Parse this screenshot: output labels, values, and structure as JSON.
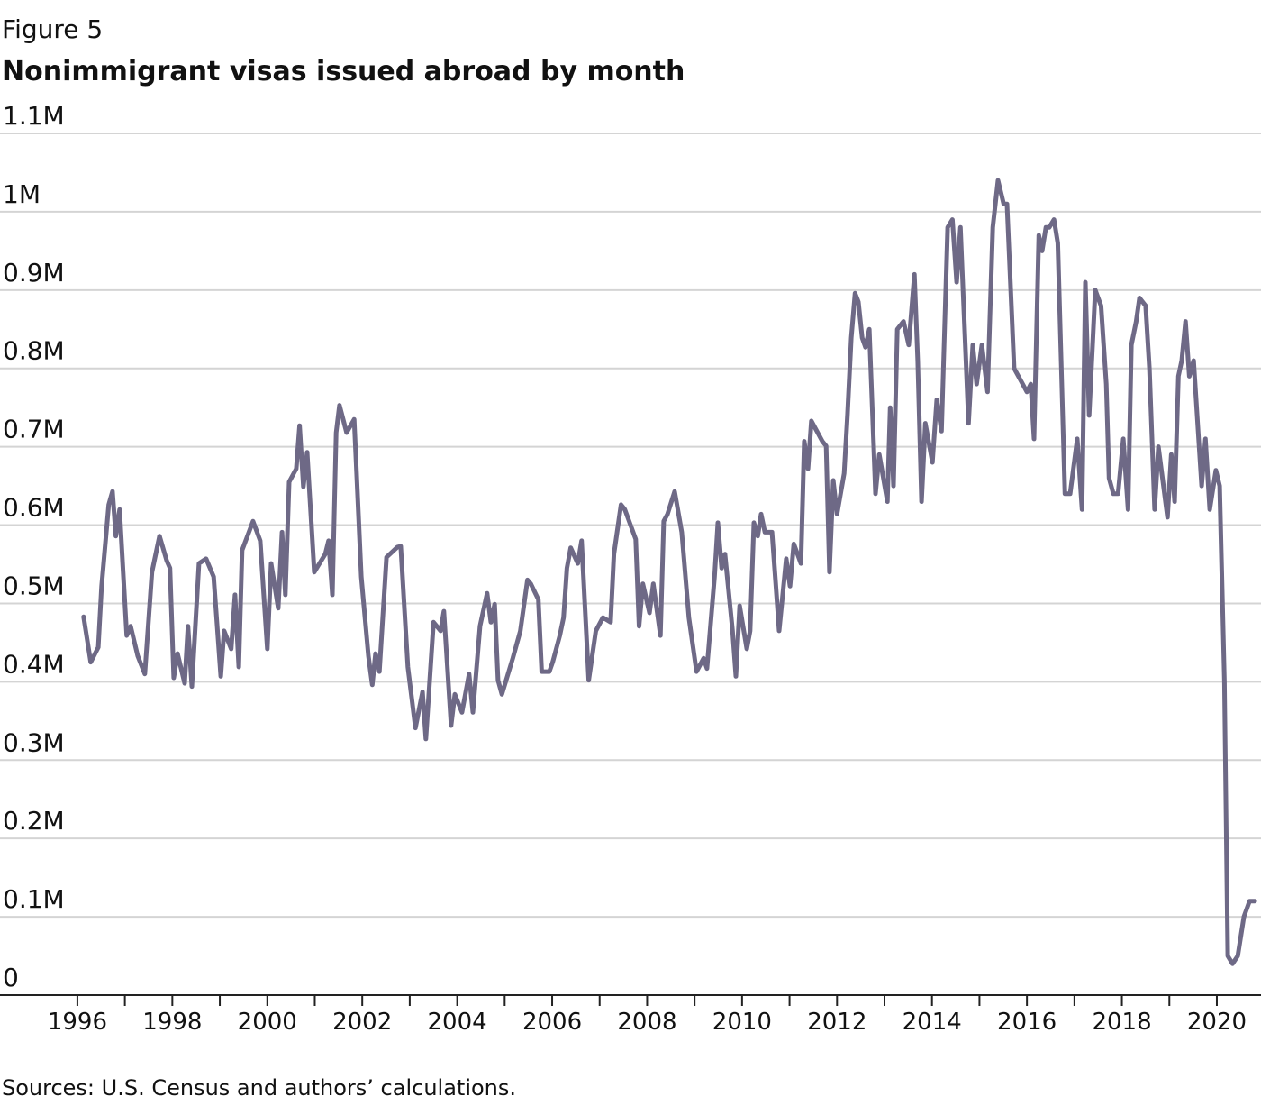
{
  "chart_data": {
    "type": "line",
    "figure_label": "Figure 5",
    "title": "Nonimmigrant visas issued abroad by month",
    "source": "Sources: U.S. Census and authors’ calculations.",
    "color": "#6e6986",
    "grid": true,
    "xlim": [
      1994.37,
      2020.93
    ],
    "ylim": [
      0,
      1100000
    ],
    "xticks": [
      1996,
      1998,
      2000,
      2002,
      2004,
      2006,
      2008,
      2010,
      2012,
      2014,
      2016,
      2018,
      2020
    ],
    "x_minor_ticks": [
      1997,
      1999,
      2001,
      2003,
      2005,
      2007,
      2009,
      2011,
      2013,
      2015,
      2017,
      2019
    ],
    "yticks": [
      0,
      {
        "value": 100000,
        "label": "0.1M"
      },
      {
        "value": 200000,
        "label": "0.2M"
      },
      {
        "value": 300000,
        "label": "0.3M"
      },
      {
        "value": 400000,
        "label": "0.4M"
      },
      {
        "value": 500000,
        "label": "0.5M"
      },
      {
        "value": 600000,
        "label": "0.6M"
      },
      {
        "value": 700000,
        "label": "0.7M"
      },
      {
        "value": 800000,
        "label": "0.8M"
      },
      {
        "value": 900000,
        "label": "0.9M"
      },
      {
        "value": 1000000,
        "label": "1M"
      },
      {
        "value": 1100000,
        "label": "1.1M"
      }
    ],
    "x": [
      1996.13,
      1996.28,
      1996.44,
      1996.51,
      1996.66,
      1996.74,
      1996.81,
      1996.89,
      1997.04,
      1997.12,
      1997.27,
      1997.42,
      1997.57,
      1997.73,
      1997.88,
      1997.95,
      1998.03,
      1998.11,
      1998.26,
      1998.33,
      1998.41,
      1998.56,
      1998.71,
      1998.87,
      1999.02,
      1999.09,
      1999.24,
      1999.32,
      1999.4,
      1999.47,
      1999.7,
      1999.85,
      2000.0,
      2000.08,
      2000.23,
      2000.31,
      2000.38,
      2000.46,
      2000.61,
      2000.68,
      2000.76,
      2000.84,
      2000.99,
      2001.22,
      2001.29,
      2001.37,
      2001.45,
      2001.52,
      2001.67,
      2001.83,
      2001.98,
      2002.13,
      2002.21,
      2002.28,
      2002.36,
      2002.51,
      2002.74,
      2002.81,
      2002.96,
      2003.12,
      2003.27,
      2003.34,
      2003.5,
      2003.65,
      2003.72,
      2003.87,
      2003.95,
      2004.1,
      2004.25,
      2004.33,
      2004.48,
      2004.63,
      2004.71,
      2004.79,
      2004.86,
      2004.94,
      2005.17,
      2005.33,
      2005.48,
      2005.55,
      2005.71,
      2005.78,
      2005.94,
      2006.01,
      2006.16,
      2006.24,
      2006.31,
      2006.39,
      2006.54,
      2006.62,
      2006.77,
      2006.92,
      2007.07,
      2007.23,
      2007.3,
      2007.45,
      2007.53,
      2007.76,
      2007.83,
      2007.91,
      2008.05,
      2008.13,
      2008.28,
      2008.35,
      2008.43,
      2008.58,
      2008.73,
      2008.88,
      2009.04,
      2009.19,
      2009.26,
      2009.42,
      2009.49,
      2009.57,
      2009.64,
      2009.8,
      2009.87,
      2009.95,
      2010.1,
      2010.17,
      2010.25,
      2010.33,
      2010.4,
      2010.48,
      2010.63,
      2010.78,
      2010.93,
      2011.01,
      2011.09,
      2011.24,
      2011.31,
      2011.39,
      2011.46,
      2011.69,
      2011.77,
      2011.84,
      2011.92,
      2012.0,
      2012.15,
      2012.22,
      2012.3,
      2012.38,
      2012.45,
      2012.53,
      2012.6,
      2012.68,
      2012.81,
      2012.89,
      2013.06,
      2013.12,
      2013.19,
      2013.27,
      2013.4,
      2013.51,
      2013.63,
      2013.7,
      2013.78,
      2013.86,
      2014.01,
      2014.1,
      2014.2,
      2014.33,
      2014.43,
      2014.52,
      2014.6,
      2014.77,
      2014.86,
      2014.94,
      2015.05,
      2015.17,
      2015.28,
      2015.39,
      2015.51,
      2015.58,
      2015.73,
      2015.91,
      2016.0,
      2016.08,
      2016.15,
      2016.25,
      2016.32,
      2016.4,
      2016.47,
      2016.57,
      2016.65,
      2016.8,
      2016.91,
      2017.06,
      2017.16,
      2017.23,
      2017.31,
      2017.44,
      2017.56,
      2017.67,
      2017.73,
      2017.82,
      2017.92,
      2018.03,
      2018.13,
      2018.2,
      2018.3,
      2018.37,
      2018.5,
      2018.58,
      2018.69,
      2018.77,
      2018.96,
      2019.04,
      2019.11,
      2019.19,
      2019.26,
      2019.34,
      2019.42,
      2019.51,
      2019.68,
      2019.76,
      2019.85,
      2019.98,
      2020.06,
      2020.16,
      2020.23,
      2020.33,
      2020.44,
      2020.57,
      2020.69,
      2020.8
    ],
    "values": [
      483000,
      425000,
      444000,
      522000,
      626000,
      643000,
      586000,
      620000,
      459000,
      471000,
      433000,
      410000,
      540000,
      586000,
      555000,
      545000,
      405000,
      436000,
      398000,
      471000,
      394000,
      551000,
      557000,
      534000,
      407000,
      465000,
      442000,
      511000,
      419000,
      568000,
      605000,
      580000,
      442000,
      551000,
      494000,
      591000,
      511000,
      655000,
      672000,
      727000,
      649000,
      693000,
      540000,
      563000,
      580000,
      511000,
      718000,
      753000,
      718000,
      735000,
      534000,
      433000,
      396000,
      436000,
      413000,
      559000,
      572000,
      573000,
      419000,
      341000,
      387000,
      327000,
      476000,
      465000,
      490000,
      344000,
      384000,
      361000,
      410000,
      361000,
      471000,
      513000,
      476000,
      499000,
      402000,
      384000,
      430000,
      465000,
      530000,
      525000,
      505000,
      413000,
      413000,
      425000,
      459000,
      482000,
      545000,
      571000,
      551000,
      580000,
      402000,
      465000,
      482000,
      476000,
      563000,
      626000,
      620000,
      582000,
      471000,
      525000,
      488000,
      525000,
      459000,
      605000,
      614000,
      643000,
      591000,
      482000,
      413000,
      430000,
      417000,
      534000,
      603000,
      545000,
      563000,
      465000,
      407000,
      497000,
      442000,
      465000,
      603000,
      586000,
      614000,
      591000,
      591000,
      465000,
      557000,
      522000,
      576000,
      551000,
      707000,
      672000,
      733000,
      707000,
      701000,
      540000,
      657000,
      614000,
      666000,
      741000,
      839000,
      896000,
      885000,
      839000,
      827000,
      850000,
      640000,
      690000,
      630000,
      750000,
      650000,
      850000,
      860000,
      830000,
      920000,
      810000,
      630000,
      730000,
      680000,
      760000,
      720000,
      980000,
      990000,
      910000,
      980000,
      730000,
      830000,
      780000,
      830000,
      770000,
      980000,
      1040000,
      1010000,
      1010000,
      800000,
      780000,
      770000,
      780000,
      710000,
      970000,
      950000,
      980000,
      980000,
      990000,
      960000,
      640000,
      640000,
      710000,
      620000,
      910000,
      740000,
      900000,
      880000,
      780000,
      660000,
      640000,
      640000,
      710000,
      620000,
      830000,
      860000,
      890000,
      880000,
      800000,
      620000,
      700000,
      610000,
      690000,
      630000,
      790000,
      810000,
      860000,
      790000,
      810000,
      650000,
      710000,
      620000,
      670000,
      650000,
      400000,
      50000,
      40000,
      50000,
      100000,
      120000,
      120000
    ]
  }
}
